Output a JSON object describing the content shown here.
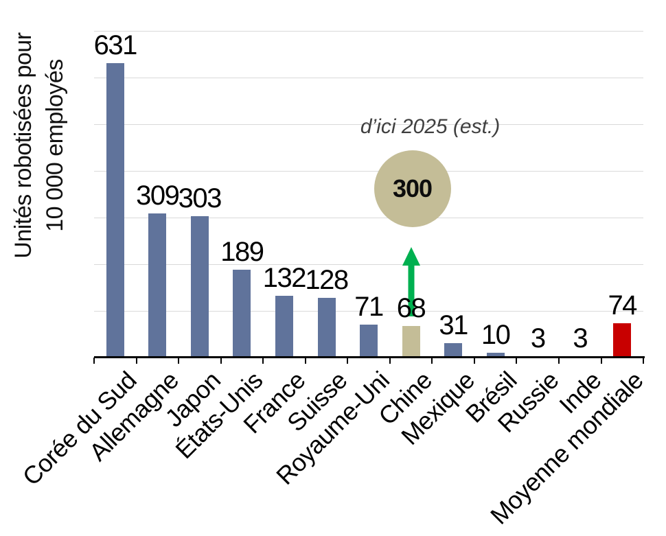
{
  "chart_data": {
    "type": "bar",
    "title": "",
    "ylabel_lines": [
      "Unités robotisées pour",
      "10 000 employés"
    ],
    "xlabel": "",
    "categories": [
      "Corée du Sud",
      "Allemagne",
      "Japon",
      "États-Unis",
      "France",
      "Suisse",
      "Royaume-Uni",
      "Chine",
      "Mexique",
      "Brésil",
      "Russie",
      "Inde",
      "Moyenne mondiale"
    ],
    "values": [
      631,
      309,
      303,
      189,
      132,
      128,
      71,
      68,
      31,
      10,
      3,
      3,
      74
    ],
    "bar_roles": [
      "default",
      "default",
      "default",
      "default",
      "default",
      "default",
      "default",
      "highlight",
      "default",
      "default",
      "default",
      "default",
      "accent"
    ],
    "ylim": [
      0,
      700
    ],
    "gridline_step": 100,
    "grid": true,
    "legend": false,
    "annotation": {
      "label": "d’ici 2025 (est.)",
      "value": "300",
      "target_category": "Chine"
    },
    "colors": {
      "default": "#60739B",
      "highlight": "#C4BD97",
      "accent": "#C80000",
      "circle": "#C4BD97",
      "arrow": "#00B050",
      "gridline": "#D9D9D9",
      "axis": "#000000"
    }
  }
}
